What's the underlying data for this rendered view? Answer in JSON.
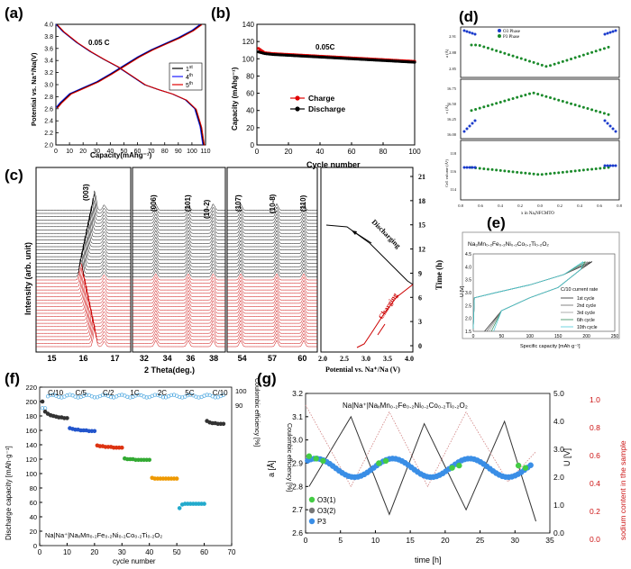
{
  "chart_data": [
    {
      "panel": "(a)",
      "type": "line",
      "title": "0.05 C",
      "xlabel": "Capacity(mAhg⁻¹)",
      "ylabel": "Potential vs. Na⁺/Na(V)",
      "xlim": [
        0,
        110
      ],
      "ylim": [
        2.0,
        4.0
      ],
      "xticks": [
        "0",
        "10",
        "20",
        "30",
        "40",
        "50",
        "60",
        "70",
        "80",
        "90",
        "100",
        "110"
      ],
      "yticks": [
        "2.0",
        "2.2",
        "2.4",
        "2.6",
        "2.8",
        "3.0",
        "3.2",
        "3.4",
        "3.6",
        "3.8",
        "4.0"
      ],
      "legend": [
        "1st",
        "4th",
        "5th"
      ],
      "legend_sup": [
        "st",
        "th",
        "th"
      ],
      "legend_base": [
        "1",
        "4",
        "5"
      ],
      "series": [
        {
          "name": "charge",
          "color": "#000000",
          "x": [
            0,
            3,
            10,
            20,
            30,
            40,
            50,
            60,
            70,
            80,
            90,
            100,
            106
          ],
          "y": [
            2.62,
            2.7,
            2.85,
            2.95,
            3.05,
            3.18,
            3.32,
            3.46,
            3.58,
            3.68,
            3.78,
            3.9,
            4.0
          ]
        },
        {
          "name": "discharge",
          "color": "#e00000",
          "x": [
            0,
            5,
            15,
            25,
            35,
            45,
            55,
            65,
            75,
            85,
            95,
            102,
            106,
            108
          ],
          "y": [
            4.0,
            3.88,
            3.7,
            3.55,
            3.42,
            3.3,
            3.15,
            3.0,
            2.92,
            2.85,
            2.75,
            2.6,
            2.3,
            2.0
          ]
        }
      ]
    },
    {
      "panel": "(b)",
      "type": "scatter",
      "title": "0.05C",
      "xlabel": "Cycle number",
      "ylabel": "Capacity (mAhg⁻¹)",
      "xlim": [
        0,
        100
      ],
      "ylim": [
        0,
        140
      ],
      "xticks": [
        "0",
        "20",
        "40",
        "60",
        "80",
        "100"
      ],
      "yticks": [
        "0",
        "20",
        "40",
        "60",
        "80",
        "100",
        "120",
        "140"
      ],
      "legend": [
        "Charge",
        "Discharge"
      ],
      "series": [
        {
          "name": "Charge",
          "color": "#e00000",
          "x": [
            1,
            5,
            10,
            20,
            30,
            40,
            50,
            60,
            70,
            80,
            90,
            100
          ],
          "values": [
            112,
            107,
            106,
            105,
            104,
            103,
            102,
            101,
            100,
            99,
            98,
            97
          ]
        },
        {
          "name": "Discharge",
          "color": "#000000",
          "x": [
            1,
            5,
            10,
            20,
            30,
            40,
            50,
            60,
            70,
            80,
            90,
            100
          ],
          "values": [
            108,
            106,
            105,
            104,
            103,
            102,
            101,
            100,
            99,
            98,
            97,
            96
          ]
        }
      ]
    },
    {
      "panel": "(c)",
      "type": "line",
      "xlabel": "2 Theta(deg.)",
      "ylabel": "Intensity (arb. unit)",
      "xlabel_right": "Potential vs. Na⁺/Na (V)",
      "ylabel_right": "Time (h)",
      "xticks_1": [
        "15",
        "16",
        "17"
      ],
      "xticks_2": [
        "32",
        "34",
        "36",
        "38"
      ],
      "xticks_3": [
        "54",
        "57",
        "60"
      ],
      "xticks_4": [
        "2.0",
        "2.5",
        "3.0",
        "3.5",
        "4.0"
      ],
      "yticks_right": [
        "0",
        "3",
        "6",
        "9",
        "12",
        "15",
        "18",
        "21"
      ],
      "peak_labels": [
        "(003)",
        "(006)",
        "(101)",
        "(10-2)",
        "(107)",
        "(10-8)",
        "(110)"
      ],
      "annotations": [
        "Discharging",
        "Charging"
      ]
    },
    {
      "panel": "(d)",
      "type": "scatter",
      "xlabel": "x in NaₓNFCMTO",
      "xticks": [
        "0.8",
        "0.7",
        "0.6",
        "0.5",
        "0.4",
        "0.3",
        "0.2",
        "0.1",
        "0.0",
        "0.1",
        "0.2",
        "0.3",
        "0.4",
        "0.5",
        "0.6",
        "0.7",
        "0.8"
      ],
      "legend": [
        "O3 Phase",
        "P3 Phase"
      ],
      "subplots": [
        {
          "ylabel": "a (Å)",
          "yticks": [
            "2.85",
            "2.88",
            "2.91"
          ]
        },
        {
          "ylabel": "c (Å)",
          "yticks": [
            "16.00",
            "16.25",
            "16.50",
            "16.75"
          ]
        },
        {
          "ylabel": "Cell volume (Å³)",
          "yticks": [
            "114",
            "116",
            "118"
          ]
        }
      ]
    },
    {
      "panel": "(e)",
      "type": "line",
      "title": "Na₃Mn₀.₂Fe₀.₂Ni₀.₂Co₀.₂Ti₀.₂O₂",
      "xlabel": "Specific capacity [mAh·g⁻¹]",
      "ylabel": "U [V]",
      "xlim": [
        0,
        250
      ],
      "ylim": [
        1.5,
        4.5
      ],
      "xticks": [
        "0",
        "50",
        "100",
        "150",
        "200",
        "250"
      ],
      "yticks": [
        "1.5",
        "2.0",
        "2.5",
        "3.0",
        "3.5",
        "4.0",
        "4.5"
      ],
      "legend_title": "C/10 current rate",
      "legend": [
        "1st cycle",
        "2nd cycle",
        "3rd cycle",
        "6th cycle",
        "10th cycle"
      ]
    },
    {
      "panel": "(f)",
      "type": "scatter",
      "title": "Na|Na⁺|NaₓMn₀.₂Fe₀.₂Ni₀.₂Co₀.₂Ti₀.₂O₂",
      "xlabel": "cycle number",
      "ylabel": "Discharge capacity [mAh·g⁻¹]",
      "ylabel_right": "Coulombic efficiency [%]",
      "xlim": [
        0,
        70
      ],
      "ylim": [
        0,
        220
      ],
      "xticks": [
        "0",
        "10",
        "20",
        "30",
        "40",
        "50",
        "60",
        "70"
      ],
      "yticks": [
        "0",
        "20",
        "40",
        "60",
        "80",
        "100",
        "120",
        "140",
        "160",
        "180",
        "200",
        "220"
      ],
      "yticks_right": [
        "90",
        "100"
      ],
      "rate_labels": [
        "C/10",
        "C/5",
        "C/2",
        "1C",
        "2C",
        "5C",
        "C/10"
      ],
      "series": [
        {
          "name": "C/10",
          "color": "#333333",
          "x": [
            1,
            2,
            3,
            4,
            5,
            6,
            7,
            8,
            9,
            10
          ],
          "values": [
            200,
            186,
            183,
            181,
            180,
            179,
            178,
            178,
            177,
            177
          ]
        },
        {
          "name": "C/5",
          "color": "#2255cc",
          "x": [
            11,
            12,
            13,
            14,
            15,
            16,
            17,
            18,
            19,
            20
          ],
          "values": [
            163,
            162,
            161,
            161,
            160,
            160,
            160,
            159,
            159,
            159
          ]
        },
        {
          "name": "C/2",
          "color": "#dd3311",
          "x": [
            21,
            22,
            23,
            24,
            25,
            26,
            27,
            28,
            29,
            30
          ],
          "values": [
            139,
            138,
            138,
            137,
            137,
            137,
            136,
            136,
            136,
            136
          ]
        },
        {
          "name": "1C",
          "color": "#33aa33",
          "x": [
            31,
            32,
            33,
            34,
            35,
            36,
            37,
            38,
            39,
            40
          ],
          "values": [
            121,
            120,
            120,
            120,
            119,
            119,
            119,
            119,
            119,
            119
          ]
        },
        {
          "name": "2C",
          "color": "#ee9900",
          "x": [
            41,
            42,
            43,
            44,
            45,
            46,
            47,
            48,
            49,
            50
          ],
          "values": [
            94,
            93,
            93,
            93,
            93,
            93,
            93,
            93,
            93,
            93
          ]
        },
        {
          "name": "5C",
          "color": "#22aacc",
          "x": [
            51,
            52,
            53,
            54,
            55,
            56,
            57,
            58,
            59,
            60
          ],
          "values": [
            52,
            57,
            58,
            58,
            58,
            58,
            58,
            58,
            58,
            58
          ]
        },
        {
          "name": "C/10",
          "color": "#333333",
          "x": [
            61,
            62,
            63,
            64,
            65,
            66,
            67
          ],
          "values": [
            173,
            171,
            170,
            170,
            169,
            169,
            169
          ]
        }
      ]
    },
    {
      "panel": "(g)",
      "type": "line",
      "title": "Na|Na⁺|NaₓMn₀.₂Fe₀.₂Ni₀.₂Co₀.₂Ti₀.₂O₂",
      "xlabel": "time [h]",
      "ylabel": "a [Å]",
      "ylabel_right": "U [V]",
      "ylabel_right2": "sodium content in the sample",
      "xlim": [
        0,
        35
      ],
      "ylim": [
        2.6,
        3.2
      ],
      "xticks": [
        "0",
        "5",
        "10",
        "15",
        "20",
        "25",
        "30",
        "35"
      ],
      "yticks": [
        "2.6",
        "2.7",
        "2.8",
        "2.9",
        "3.0",
        "3.1",
        "3.2"
      ],
      "yticks_right": [
        "0.0",
        "1.0",
        "2.0",
        "3.0",
        "4.0",
        "5.0"
      ],
      "yticks_right2": [
        "0.0",
        "0.2",
        "0.4",
        "0.6",
        "0.8",
        "1.0"
      ],
      "legend": [
        "O3(1)",
        "O3(2)",
        "P3"
      ]
    }
  ]
}
